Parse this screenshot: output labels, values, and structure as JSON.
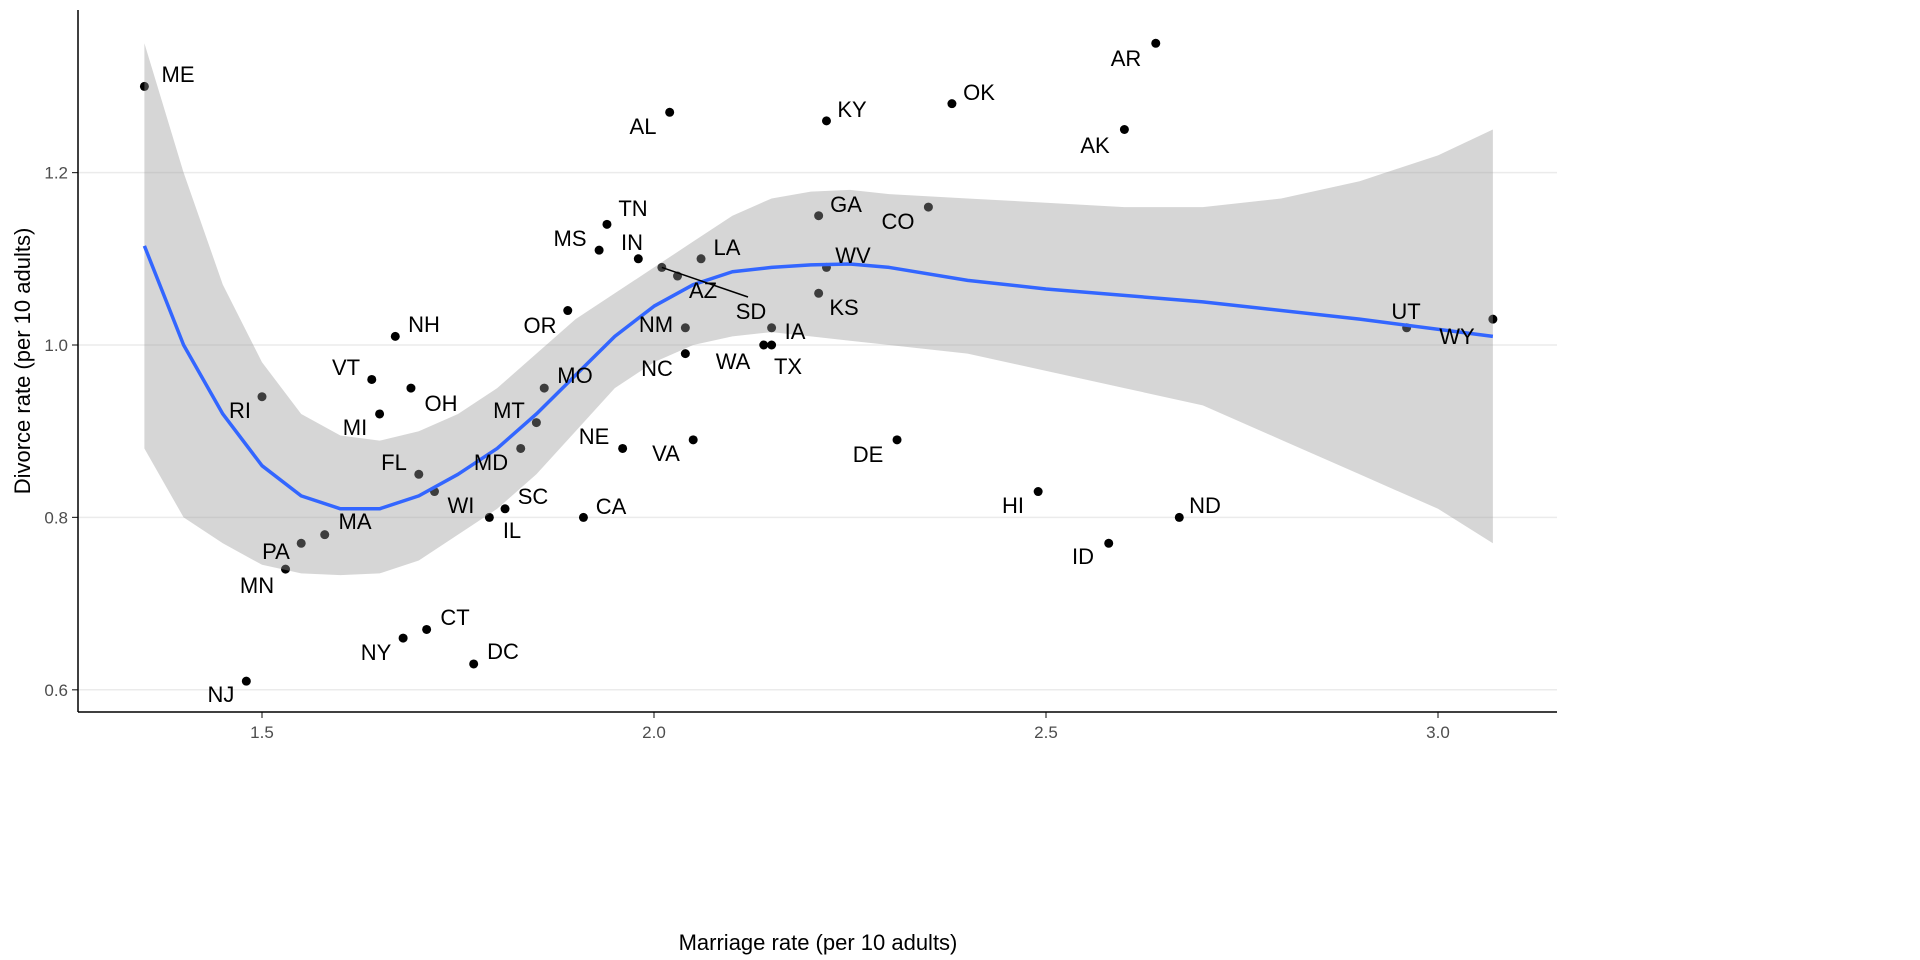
{
  "chart_data": {
    "type": "scatter",
    "title": "",
    "xlabel": "Marriage rate (per 10 adults)",
    "ylabel": "Divorce rate (per 10 adults)",
    "xlim": [
      1.28,
      3.16
    ],
    "ylim": [
      0.57,
      1.385
    ],
    "xticks": [
      1.5,
      2.0,
      2.5,
      3.0
    ],
    "xtick_labels": [
      "1.5",
      "2.0",
      "2.5",
      "3.0"
    ],
    "yticks": [
      0.6,
      0.8,
      1.0,
      1.2
    ],
    "ytick_labels": [
      "0.6",
      "0.8",
      "1.0",
      "1.2"
    ],
    "grid": "horizontal major lines",
    "point_color": "#000000",
    "smooth_color": "#3366FF",
    "band_color": "#999999",
    "points": [
      {
        "label": "ME",
        "x": 1.35,
        "y": 1.3
      },
      {
        "label": "AR",
        "x": 2.64,
        "y": 1.35
      },
      {
        "label": "AL",
        "x": 2.02,
        "y": 1.27
      },
      {
        "label": "KY",
        "x": 2.22,
        "y": 1.26
      },
      {
        "label": "OK",
        "x": 2.38,
        "y": 1.28
      },
      {
        "label": "AK",
        "x": 2.6,
        "y": 1.25
      },
      {
        "label": "GA",
        "x": 2.21,
        "y": 1.15
      },
      {
        "label": "CO",
        "x": 2.35,
        "y": 1.16
      },
      {
        "label": "TN",
        "x": 1.94,
        "y": 1.14
      },
      {
        "label": "MS",
        "x": 1.93,
        "y": 1.11
      },
      {
        "label": "IN",
        "x": 1.98,
        "y": 1.1
      },
      {
        "label": "LA",
        "x": 2.06,
        "y": 1.1
      },
      {
        "label": "WV",
        "x": 2.22,
        "y": 1.09
      },
      {
        "label": "AZ",
        "x": 2.03,
        "y": 1.08
      },
      {
        "label": "SD",
        "x": 2.01,
        "y": 1.09
      },
      {
        "label": "KS",
        "x": 2.21,
        "y": 1.06
      },
      {
        "label": "OR",
        "x": 1.89,
        "y": 1.04
      },
      {
        "label": "NH",
        "x": 1.67,
        "y": 1.01
      },
      {
        "label": "NM",
        "x": 2.04,
        "y": 1.02
      },
      {
        "label": "IA",
        "x": 2.15,
        "y": 1.02
      },
      {
        "label": "WA",
        "x": 2.14,
        "y": 1.0
      },
      {
        "label": "TX",
        "x": 2.15,
        "y": 1.0
      },
      {
        "label": "NC",
        "x": 2.04,
        "y": 0.99
      },
      {
        "label": "UT",
        "x": 2.96,
        "y": 1.02
      },
      {
        "label": "WY",
        "x": 3.07,
        "y": 1.03
      },
      {
        "label": "VT",
        "x": 1.64,
        "y": 0.96
      },
      {
        "label": "OH",
        "x": 1.69,
        "y": 0.95
      },
      {
        "label": "MO",
        "x": 1.86,
        "y": 0.95
      },
      {
        "label": "RI",
        "x": 1.5,
        "y": 0.94
      },
      {
        "label": "MI",
        "x": 1.65,
        "y": 0.92
      },
      {
        "label": "MT",
        "x": 1.85,
        "y": 0.91
      },
      {
        "label": "NE",
        "x": 1.96,
        "y": 0.88
      },
      {
        "label": "VA",
        "x": 2.05,
        "y": 0.89
      },
      {
        "label": "DE",
        "x": 2.31,
        "y": 0.89
      },
      {
        "label": "MD",
        "x": 1.83,
        "y": 0.88
      },
      {
        "label": "FL",
        "x": 1.7,
        "y": 0.85
      },
      {
        "label": "WI",
        "x": 1.72,
        "y": 0.83
      },
      {
        "label": "HI",
        "x": 2.49,
        "y": 0.83
      },
      {
        "label": "SC",
        "x": 1.81,
        "y": 0.81
      },
      {
        "label": "IL",
        "x": 1.79,
        "y": 0.8
      },
      {
        "label": "CA",
        "x": 1.91,
        "y": 0.8
      },
      {
        "label": "ND",
        "x": 2.67,
        "y": 0.8
      },
      {
        "label": "MA",
        "x": 1.58,
        "y": 0.78
      },
      {
        "label": "PA",
        "x": 1.55,
        "y": 0.77
      },
      {
        "label": "ID",
        "x": 2.58,
        "y": 0.77
      },
      {
        "label": "MN",
        "x": 1.53,
        "y": 0.74
      },
      {
        "label": "CT",
        "x": 1.71,
        "y": 0.67
      },
      {
        "label": "NY",
        "x": 1.68,
        "y": 0.66
      },
      {
        "label": "DC",
        "x": 1.77,
        "y": 0.63
      },
      {
        "label": "NJ",
        "x": 1.48,
        "y": 0.61
      }
    ],
    "smooth": {
      "x": [
        1.35,
        1.4,
        1.45,
        1.5,
        1.55,
        1.6,
        1.65,
        1.7,
        1.75,
        1.8,
        1.85,
        1.9,
        1.95,
        2.0,
        2.05,
        2.1,
        2.15,
        2.2,
        2.25,
        2.3,
        2.4,
        2.5,
        2.7,
        2.9,
        3.07
      ],
      "y": [
        1.115,
        1.0,
        0.92,
        0.86,
        0.825,
        0.81,
        0.81,
        0.825,
        0.85,
        0.88,
        0.92,
        0.965,
        1.01,
        1.045,
        1.07,
        1.085,
        1.09,
        1.093,
        1.094,
        1.09,
        1.075,
        1.065,
        1.05,
        1.03,
        1.01
      ]
    },
    "band": {
      "x": [
        1.35,
        1.4,
        1.45,
        1.5,
        1.55,
        1.6,
        1.65,
        1.7,
        1.75,
        1.8,
        1.85,
        1.9,
        1.95,
        2.0,
        2.05,
        2.1,
        2.15,
        2.2,
        2.25,
        2.3,
        2.4,
        2.5,
        2.6,
        2.7,
        2.8,
        2.9,
        3.0,
        3.07
      ],
      "upper": [
        1.35,
        1.2,
        1.07,
        0.98,
        0.92,
        0.895,
        0.889,
        0.9,
        0.92,
        0.95,
        0.99,
        1.03,
        1.06,
        1.09,
        1.12,
        1.15,
        1.17,
        1.178,
        1.18,
        1.175,
        1.17,
        1.165,
        1.16,
        1.16,
        1.17,
        1.19,
        1.22,
        1.25
      ],
      "lower": [
        0.88,
        0.8,
        0.77,
        0.745,
        0.735,
        0.733,
        0.735,
        0.75,
        0.78,
        0.81,
        0.85,
        0.9,
        0.95,
        0.98,
        1.0,
        1.01,
        1.015,
        1.01,
        1.005,
        1.0,
        0.99,
        0.97,
        0.95,
        0.93,
        0.89,
        0.85,
        0.81,
        0.77
      ]
    }
  }
}
